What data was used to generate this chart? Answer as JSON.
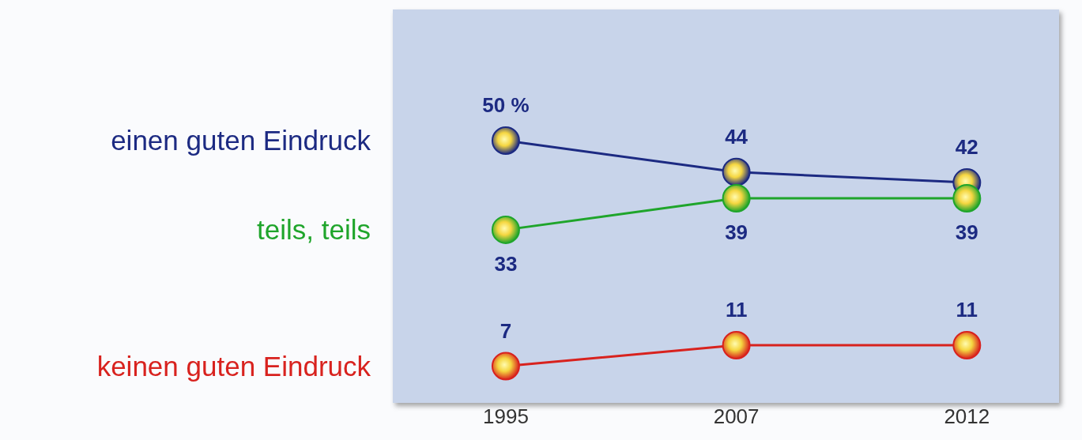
{
  "chart_data": {
    "type": "line",
    "categories": [
      "1995",
      "2007",
      "2012"
    ],
    "series": [
      {
        "name": "einen guten Eindruck",
        "color": "#1c2a82",
        "values": [
          50,
          44,
          42
        ],
        "value_labels": [
          "50 %",
          "44",
          "42"
        ]
      },
      {
        "name": "teils, teils",
        "color": "#1fa52b",
        "values": [
          33,
          39,
          39
        ],
        "value_labels": [
          "33",
          "39",
          "39"
        ]
      },
      {
        "name": "keinen guten Eindruck",
        "color": "#d8221e",
        "values": [
          7,
          11,
          11
        ],
        "value_labels": [
          "7",
          "11",
          "11"
        ]
      }
    ],
    "marker": "circle",
    "tick_labels": "x"
  }
}
